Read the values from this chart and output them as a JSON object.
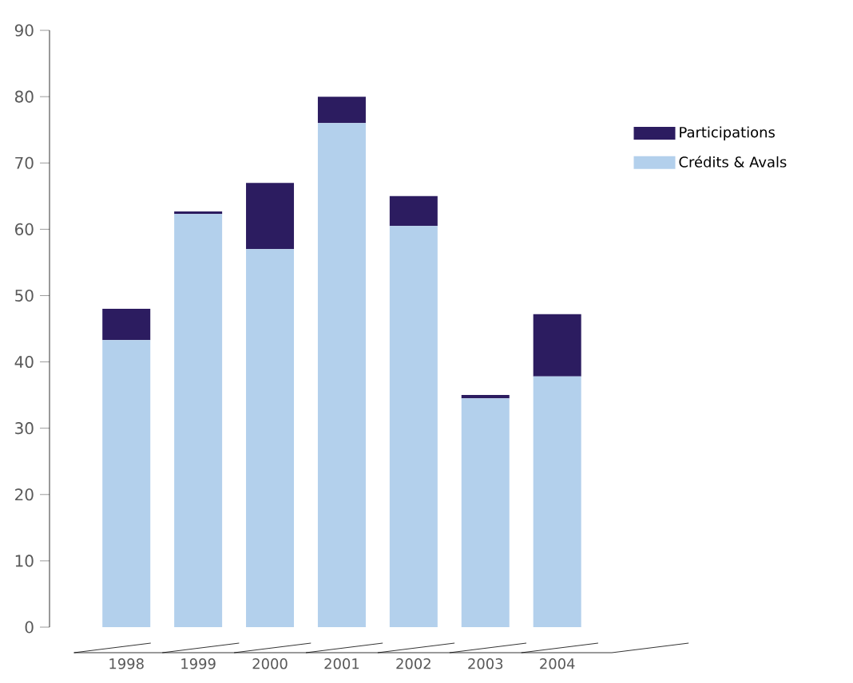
{
  "chart_data": {
    "type": "bar",
    "stacked": true,
    "categories": [
      "1998",
      "1999",
      "2000",
      "2001",
      "2002",
      "2003",
      "2004"
    ],
    "series": [
      {
        "name": "Crédits & Avals",
        "color": "#b3d0ec",
        "values": [
          43.3,
          62.3,
          57,
          76,
          60.5,
          34.5,
          37.8
        ]
      },
      {
        "name": "Participations",
        "color": "#2c1c60",
        "values": [
          4.7,
          0.4,
          10,
          4,
          4.5,
          0.5,
          9.4
        ]
      }
    ],
    "ylim": [
      0,
      90
    ],
    "yticks": [
      0,
      10,
      20,
      30,
      40,
      50,
      60,
      70,
      80,
      90
    ],
    "legend": "right"
  }
}
